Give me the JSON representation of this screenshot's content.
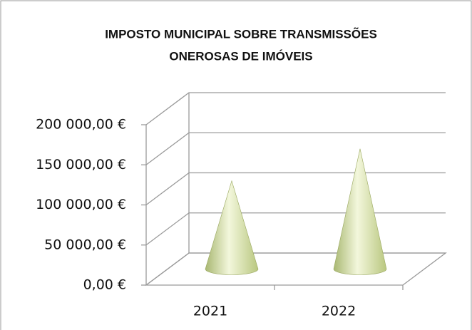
{
  "chart_data": {
    "type": "cone3d",
    "title": [
      "IMPOSTO MUNICIPAL SOBRE TRANSMISSÕES",
      "ONEROSAS DE IMÓVEIS"
    ],
    "categories": [
      "2021",
      "2022"
    ],
    "values": [
      110000,
      150000
    ],
    "color": "#d4e0a0",
    "ylim": [
      0,
      200000
    ],
    "yticks": [
      {
        "value": 0,
        "label": "0,00 €"
      },
      {
        "value": 50000,
        "label": "50 000,00 €"
      },
      {
        "value": 100000,
        "label": "100 000,00 €"
      },
      {
        "value": 150000,
        "label": "150 000,00 €"
      },
      {
        "value": 200000,
        "label": "200 000,00 €"
      }
    ],
    "grid": true
  }
}
